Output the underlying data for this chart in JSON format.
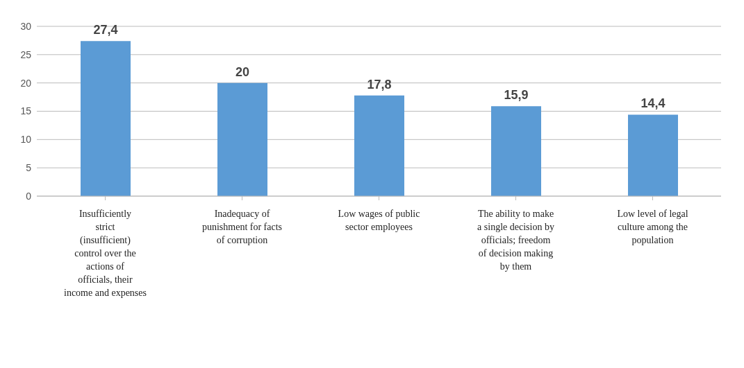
{
  "chart_data": {
    "type": "bar",
    "categories": [
      "Insufficiently strict (insufficient) control over the actions of officials, their income and expenses",
      "Inadequacy of punishment for facts of corruption",
      "Low wages of public sector employees",
      "The ability to make a single decision by officials; freedom of decision making by them",
      "Low level of legal culture among the population"
    ],
    "values": [
      27.4,
      20,
      17.8,
      15.9,
      14.4
    ],
    "value_labels": [
      "27,4",
      "20",
      "17,8",
      "15,9",
      "14,4"
    ],
    "color": "#5b9bd5",
    "ylim": [
      0,
      30
    ],
    "yticks": [
      0,
      5,
      10,
      15,
      20,
      25,
      30
    ],
    "grid": "y",
    "legend": false
  }
}
